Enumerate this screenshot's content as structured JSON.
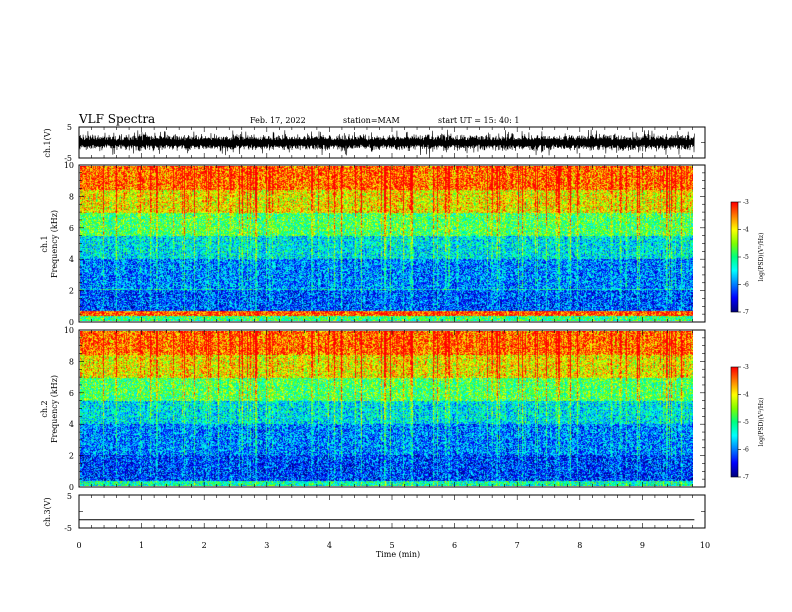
{
  "header": {
    "title": "VLF Spectra",
    "date": "Feb. 17, 2022",
    "station": "station=MAM",
    "start": "start  UT =   15: 40: 1"
  },
  "colors": {
    "colormap": [
      "#000080",
      "#0000ff",
      "#0080ff",
      "#00ffff",
      "#00ff80",
      "#80ff00",
      "#ffff00",
      "#ff8000",
      "#ff0000",
      "#ffffff"
    ],
    "trace": "#000000",
    "axes": "#000000"
  },
  "chart_data": [
    {
      "type": "line",
      "name": "ch1-waveform",
      "ylabel": "ch.1(V)",
      "ylim": [
        -5,
        5
      ],
      "yticks": [
        "5",
        "-5"
      ],
      "xlim": [
        0,
        10
      ],
      "x_extent": [
        0,
        9.83
      ],
      "description_values": "dense VLF waveform, amplitude roughly -3 to +3 V, saturating bursts near ±4 V"
    },
    {
      "type": "heatmap",
      "name": "ch1-spectrogram",
      "ylabel": "ch.1\nFrequency  (kHz)",
      "ylim": [
        0,
        10
      ],
      "yticks": [
        "0",
        "2",
        "4",
        "6",
        "8",
        "10"
      ],
      "xlim": [
        0,
        10
      ],
      "x_extent": [
        0,
        9.83
      ],
      "colorbar": {
        "label": "log(PSD)(V²/Hz)",
        "range": [
          -7,
          -3
        ],
        "ticks": [
          "-3",
          "-4",
          "-5",
          "-6",
          "-7"
        ]
      },
      "band_levels_log_psd": [
        {
          "f_khz": [
            0,
            0.3
          ],
          "value": -5.0
        },
        {
          "f_khz": [
            0.3,
            0.6
          ],
          "value": -3.3
        },
        {
          "f_khz": [
            0.6,
            2.0
          ],
          "value": -6.2
        },
        {
          "f_khz": [
            2.0,
            4.0
          ],
          "value": -6.0
        },
        {
          "f_khz": [
            4.0,
            5.5
          ],
          "value": -5.5
        },
        {
          "f_khz": [
            5.5,
            7.0
          ],
          "value": -4.8
        },
        {
          "f_khz": [
            7.0,
            8.5
          ],
          "value": -4.0
        },
        {
          "f_khz": [
            8.5,
            10.0
          ],
          "value": -3.4
        }
      ]
    },
    {
      "type": "heatmap",
      "name": "ch2-spectrogram",
      "ylabel": "ch.2\nFrequency  (kHz)",
      "ylim": [
        0,
        10
      ],
      "yticks": [
        "0",
        "2",
        "4",
        "6",
        "8",
        "10"
      ],
      "xlim": [
        0,
        10
      ],
      "x_extent": [
        0,
        9.83
      ],
      "colorbar": {
        "label": "log(PSD)(V²/Hz)",
        "range": [
          -7,
          -3
        ],
        "ticks": [
          "-3",
          "-4",
          "-5",
          "-6",
          "-7"
        ]
      },
      "band_levels_log_psd": [
        {
          "f_khz": [
            0,
            0.3
          ],
          "value": -5.2
        },
        {
          "f_khz": [
            0.3,
            2.0
          ],
          "value": -6.3
        },
        {
          "f_khz": [
            2.0,
            4.0
          ],
          "value": -6.0
        },
        {
          "f_khz": [
            4.0,
            5.5
          ],
          "value": -5.5
        },
        {
          "f_khz": [
            5.5,
            7.0
          ],
          "value": -4.8
        },
        {
          "f_khz": [
            7.0,
            8.5
          ],
          "value": -4.0
        },
        {
          "f_khz": [
            8.5,
            10.0
          ],
          "value": -3.4
        }
      ]
    },
    {
      "type": "line",
      "name": "ch3-waveform",
      "ylabel": "ch.3(V)",
      "ylim": [
        -5,
        5
      ],
      "yticks": [
        "5",
        "-5"
      ],
      "xlim": [
        0,
        10
      ],
      "x_extent": [
        0,
        9.83
      ],
      "values": [
        [
          0,
          -2.5
        ],
        [
          9.83,
          -2.5
        ]
      ]
    }
  ],
  "xaxis": {
    "label": "Time  (min)",
    "ticks": [
      "0",
      "1",
      "2",
      "3",
      "4",
      "5",
      "6",
      "7",
      "8",
      "9",
      "10"
    ]
  }
}
